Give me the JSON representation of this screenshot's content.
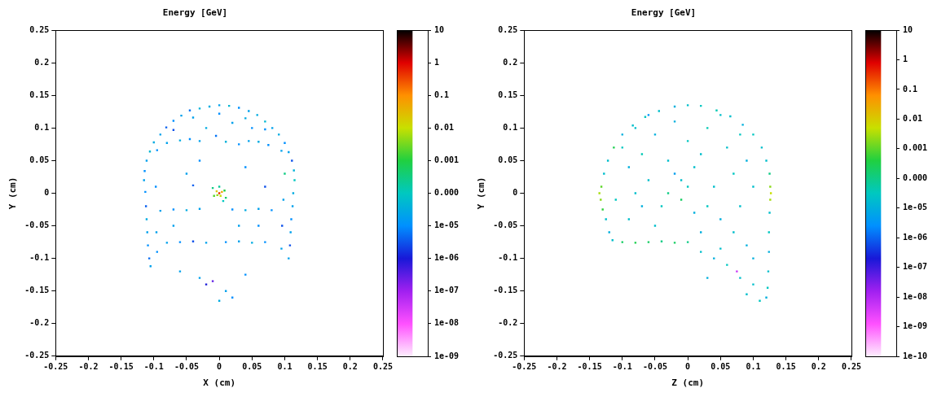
{
  "chart_data": [
    {
      "type": "scatter",
      "title": "Energy [GeV]",
      "x_label": "X (cm)",
      "y_label": "Y (cm)",
      "xlim": [
        -0.25,
        0.25
      ],
      "ylim": [
        -0.25,
        0.25
      ],
      "xticks": [
        -0.25,
        -0.2,
        -0.15,
        -0.1,
        -0.05,
        0,
        0.05,
        0.1,
        0.15,
        0.2,
        0.25
      ],
      "yticks": [
        -0.25,
        -0.2,
        -0.15,
        -0.1,
        -0.05,
        0,
        0.05,
        0.1,
        0.15,
        0.2,
        0.25
      ],
      "grid": false,
      "marker": "square",
      "points": [
        [
          0,
          0.135,
          2e-05
        ],
        [
          0.015,
          0.134,
          5e-05
        ],
        [
          -0.015,
          0.133,
          3e-05
        ],
        [
          0.03,
          0.131,
          1e-05
        ],
        [
          -0.03,
          0.13,
          4e-05
        ],
        [
          0.045,
          0.126,
          2e-05
        ],
        [
          -0.045,
          0.127,
          6e-06
        ],
        [
          0.058,
          0.12,
          3e-05
        ],
        [
          -0.058,
          0.119,
          2e-05
        ],
        [
          0.07,
          0.11,
          5e-05
        ],
        [
          -0.07,
          0.111,
          1e-05
        ],
        [
          0.081,
          0.1,
          2e-05
        ],
        [
          -0.081,
          0.101,
          4e-06
        ],
        [
          0.091,
          0.09,
          3e-05
        ],
        [
          -0.09,
          0.09,
          2e-05
        ],
        [
          0.1,
          0.077,
          1e-05
        ],
        [
          -0.1,
          0.078,
          3e-05
        ],
        [
          0.106,
          0.063,
          2e-05
        ],
        [
          -0.106,
          0.064,
          5e-05
        ],
        [
          0.111,
          0.05,
          3e-06
        ],
        [
          -0.111,
          0.05,
          2e-05
        ],
        [
          0.114,
          0.035,
          4e-05
        ],
        [
          -0.114,
          0.034,
          1e-05
        ],
        [
          0,
          0.122,
          1e-05
        ],
        [
          0.04,
          0.115,
          3e-05
        ],
        [
          -0.04,
          0.116,
          2e-05
        ],
        [
          0.07,
          0.098,
          1e-05
        ],
        [
          -0.07,
          0.097,
          3e-06
        ],
        [
          0.095,
          0.065,
          2e-05
        ],
        [
          -0.095,
          0.066,
          1e-05
        ],
        [
          0.115,
          0.02,
          0.0001
        ],
        [
          -0.115,
          0.02,
          2e-05
        ],
        [
          0.113,
          0,
          3e-05
        ],
        [
          -0.113,
          0.002,
          1e-05
        ],
        [
          0.112,
          -0.02,
          2e-05
        ],
        [
          -0.112,
          -0.02,
          4e-06
        ],
        [
          0.11,
          -0.04,
          1e-05
        ],
        [
          -0.111,
          -0.04,
          3e-05
        ],
        [
          0.109,
          -0.06,
          2e-05
        ],
        [
          -0.11,
          -0.06,
          2e-05
        ],
        [
          0.108,
          -0.08,
          3e-06
        ],
        [
          -0.109,
          -0.08,
          1e-05
        ],
        [
          0.106,
          -0.1,
          2e-05
        ],
        [
          -0.107,
          -0.1,
          5e-06
        ],
        [
          -0.105,
          -0.112,
          2e-05
        ],
        [
          0.1,
          0.03,
          0.0003
        ],
        [
          0.098,
          -0.01,
          2e-05
        ],
        [
          -0.097,
          0.01,
          1e-05
        ],
        [
          0.096,
          -0.05,
          3e-06
        ],
        [
          -0.096,
          -0.06,
          2e-05
        ],
        [
          -0.095,
          -0.09,
          1e-05
        ],
        [
          0.095,
          -0.085,
          2e-05
        ],
        [
          -0.08,
          0.077,
          2e-05
        ],
        [
          -0.06,
          0.081,
          3e-05
        ],
        [
          -0.045,
          0.083,
          1e-05
        ],
        [
          -0.03,
          0.08,
          2e-05
        ],
        [
          0.01,
          0.079,
          4e-05
        ],
        [
          0.03,
          0.075,
          1e-05
        ],
        [
          0.045,
          0.08,
          2e-05
        ],
        [
          0.06,
          0.079,
          3e-05
        ],
        [
          0.075,
          0.074,
          1e-05
        ],
        [
          -0.005,
          0.088,
          6e-06
        ],
        [
          -0.09,
          -0.027,
          2e-05
        ],
        [
          -0.07,
          -0.025,
          1e-05
        ],
        [
          -0.05,
          -0.026,
          3e-05
        ],
        [
          -0.03,
          -0.024,
          2e-05
        ],
        [
          0.02,
          -0.025,
          1e-05
        ],
        [
          0.04,
          -0.026,
          3e-05
        ],
        [
          0.06,
          -0.024,
          2e-05
        ],
        [
          0.08,
          -0.026,
          1e-05
        ],
        [
          -0.08,
          -0.076,
          2e-05
        ],
        [
          -0.06,
          -0.075,
          1e-05
        ],
        [
          -0.04,
          -0.074,
          3e-06
        ],
        [
          -0.02,
          -0.076,
          2e-05
        ],
        [
          0.01,
          -0.075,
          1e-05
        ],
        [
          0.03,
          -0.074,
          2e-05
        ],
        [
          0.05,
          -0.076,
          3e-05
        ],
        [
          0.07,
          -0.075,
          1e-05
        ],
        [
          0.006,
          -0.012,
          0.0001
        ],
        [
          0,
          0.01,
          0.0002
        ],
        [
          -0.01,
          0.008,
          0.0003
        ],
        [
          0.01,
          -0.007,
          0.0005
        ],
        [
          -0.008,
          -0.004,
          0.002
        ],
        [
          0.008,
          0.004,
          0.001
        ],
        [
          -0.003,
          -0.003,
          0.005
        ],
        [
          0.002,
          -0.004,
          0.01
        ],
        [
          -0.004,
          0.003,
          0.02
        ],
        [
          0.004,
          0.002,
          0.05
        ],
        [
          0,
          0,
          0.5
        ],
        [
          -0.05,
          0.03,
          2e-05
        ],
        [
          0.04,
          0.04,
          1e-05
        ],
        [
          0.07,
          0.01,
          3e-06
        ],
        [
          -0.07,
          -0.05,
          2e-05
        ],
        [
          0.06,
          -0.05,
          1e-05
        ],
        [
          0.02,
          0.108,
          2e-05
        ],
        [
          -0.02,
          0.1,
          3e-05
        ],
        [
          0.05,
          0.1,
          1e-05
        ],
        [
          -0.03,
          0.05,
          1e-05
        ],
        [
          0.03,
          -0.05,
          2e-05
        ],
        [
          -0.04,
          0.012,
          4e-06
        ],
        [
          -0.03,
          -0.13,
          2e-05
        ],
        [
          -0.02,
          -0.14,
          1e-06
        ],
        [
          0.01,
          -0.15,
          2e-05
        ],
        [
          0,
          -0.165,
          3e-05
        ],
        [
          0.04,
          -0.125,
          1e-05
        ],
        [
          -0.06,
          -0.12,
          2e-05
        ],
        [
          0.02,
          -0.16,
          1e-05
        ],
        [
          -0.01,
          -0.135,
          3e-07
        ]
      ],
      "colorbar": {
        "log": true,
        "range": [
          1e-09,
          10
        ],
        "ticks": [
          10,
          1,
          0.1,
          0.01,
          0.001,
          {
            "value": 0.0001,
            "label": "0.000"
          },
          {
            "value": 1e-05,
            "label": "1e-05"
          },
          {
            "value": 1e-06,
            "label": "1e-06"
          },
          {
            "value": 1e-07,
            "label": "1e-07"
          },
          {
            "value": 1e-08,
            "label": "1e-08"
          },
          {
            "value": 1e-09,
            "label": "1e-09"
          }
        ]
      }
    },
    {
      "type": "scatter",
      "title": "Energy [GeV]",
      "x_label": "Z (cm)",
      "y_label": "Y (cm)",
      "xlim": [
        -0.25,
        0.25
      ],
      "ylim": [
        -0.25,
        0.25
      ],
      "xticks": [
        -0.25,
        -0.2,
        -0.15,
        -0.1,
        -0.05,
        0,
        0.05,
        0.1,
        0.15,
        0.2,
        0.25
      ],
      "yticks": [
        -0.25,
        -0.2,
        -0.15,
        -0.1,
        -0.05,
        0,
        0.05,
        0.1,
        0.15,
        0.2,
        0.25
      ],
      "grid": false,
      "marker": "square",
      "points": [
        [
          0,
          0.135,
          2e-05
        ],
        [
          0.02,
          0.134,
          3e-05
        ],
        [
          -0.02,
          0.133,
          1e-05
        ],
        [
          0.044,
          0.127,
          4e-05
        ],
        [
          -0.044,
          0.126,
          2e-05
        ],
        [
          0.065,
          0.118,
          2e-05
        ],
        [
          -0.065,
          0.117,
          3e-05
        ],
        [
          0.084,
          0.105,
          1e-05
        ],
        [
          -0.084,
          0.104,
          2e-05
        ],
        [
          0.1,
          0.09,
          3e-05
        ],
        [
          -0.1,
          0.09,
          1e-05
        ],
        [
          0.113,
          0.07,
          2e-05
        ],
        [
          -0.113,
          0.07,
          0.0003
        ],
        [
          0.12,
          0.05,
          2e-05
        ],
        [
          -0.122,
          0.05,
          2e-05
        ],
        [
          0.125,
          0.03,
          0.0001
        ],
        [
          0.126,
          0.01,
          0.002
        ],
        [
          0.127,
          0,
          0.005
        ],
        [
          0.126,
          -0.01,
          0.003
        ],
        [
          0.125,
          -0.03,
          2e-05
        ],
        [
          0.124,
          -0.06,
          3e-05
        ],
        [
          0.124,
          -0.09,
          1e-05
        ],
        [
          0.123,
          -0.12,
          2e-05
        ],
        [
          0.122,
          -0.145,
          3e-05
        ],
        [
          0.12,
          -0.16,
          1e-05
        ],
        [
          -0.128,
          0.03,
          2e-05
        ],
        [
          -0.132,
          0.01,
          0.001
        ],
        [
          -0.135,
          0,
          0.003
        ],
        [
          -0.133,
          -0.01,
          0.002
        ],
        [
          -0.13,
          -0.025,
          0.0005
        ],
        [
          -0.125,
          -0.04,
          2e-05
        ],
        [
          -0.12,
          -0.06,
          1e-05
        ],
        [
          -0.115,
          -0.072,
          2e-05
        ],
        [
          -0.1,
          -0.075,
          0.0002
        ],
        [
          -0.08,
          -0.076,
          0.0003
        ],
        [
          -0.06,
          -0.075,
          0.0002
        ],
        [
          -0.04,
          -0.074,
          0.0001
        ],
        [
          -0.02,
          -0.076,
          0.0002
        ],
        [
          0,
          -0.075,
          0.0001
        ],
        [
          -0.1,
          0.07,
          3e-05
        ],
        [
          -0.09,
          0.04,
          1e-05
        ],
        [
          -0.08,
          0.1,
          2e-05
        ],
        [
          -0.07,
          0.06,
          4e-05
        ],
        [
          -0.06,
          0.02,
          2e-05
        ],
        [
          -0.05,
          0.09,
          1e-05
        ],
        [
          -0.04,
          -0.02,
          3e-05
        ],
        [
          -0.03,
          0.05,
          2e-05
        ],
        [
          -0.02,
          0.11,
          1e-05
        ],
        [
          -0.01,
          0.02,
          2e-05
        ],
        [
          0,
          0.08,
          3e-05
        ],
        [
          0.01,
          -0.03,
          1e-05
        ],
        [
          0.02,
          0.06,
          2e-05
        ],
        [
          0.03,
          0.1,
          4e-05
        ],
        [
          0.04,
          0.01,
          2e-05
        ],
        [
          0.05,
          -0.04,
          1e-05
        ],
        [
          0.06,
          0.07,
          2e-05
        ],
        [
          0.07,
          0.03,
          3e-05
        ],
        [
          0.08,
          -0.02,
          2e-05
        ],
        [
          0.09,
          0.05,
          1e-05
        ],
        [
          0.1,
          0.01,
          2e-05
        ],
        [
          -0.11,
          -0.01,
          3e-05
        ],
        [
          -0.09,
          -0.04,
          2e-05
        ],
        [
          -0.07,
          -0.02,
          1e-05
        ],
        [
          -0.05,
          -0.05,
          2e-05
        ],
        [
          -0.03,
          0,
          0.0001
        ],
        [
          -0.01,
          -0.01,
          0.0002
        ],
        [
          0,
          0.01,
          3e-05
        ],
        [
          0.01,
          0.04,
          2e-05
        ],
        [
          0.02,
          -0.06,
          1e-05
        ],
        [
          -0.02,
          0.03,
          5e-06
        ],
        [
          0.05,
          0.12,
          2e-05
        ],
        [
          -0.06,
          0.12,
          3e-06
        ],
        [
          0.07,
          -0.06,
          2e-05
        ],
        [
          0.09,
          -0.08,
          1e-05
        ],
        [
          0.08,
          0.09,
          3e-05
        ],
        [
          -0.08,
          0,
          2e-05
        ],
        [
          0.03,
          -0.02,
          3e-05
        ],
        [
          0.02,
          -0.09,
          2e-05
        ],
        [
          0.04,
          -0.1,
          1e-05
        ],
        [
          0.06,
          -0.11,
          3e-05
        ],
        [
          0.075,
          -0.12,
          5e-09
        ],
        [
          0.08,
          -0.13,
          2e-05
        ],
        [
          0.1,
          -0.1,
          1e-05
        ],
        [
          0.1,
          -0.14,
          2e-05
        ],
        [
          0.11,
          -0.165,
          3e-05
        ],
        [
          0.03,
          -0.13,
          1e-05
        ],
        [
          0.09,
          -0.155,
          2e-05
        ],
        [
          0.05,
          -0.085,
          2e-05
        ]
      ],
      "colorbar": {
        "log": true,
        "range": [
          1e-10,
          10
        ],
        "ticks": [
          10,
          1,
          0.1,
          0.01,
          0.001,
          0.0001,
          {
            "value": 1e-05,
            "label": "1e-05"
          },
          {
            "value": 1e-06,
            "label": "1e-06"
          },
          {
            "value": 1e-07,
            "label": "1e-07"
          },
          {
            "value": 1e-08,
            "label": "1e-08"
          },
          {
            "value": 1e-09,
            "label": "1e-09"
          },
          {
            "value": 1e-10,
            "label": "1e-10"
          }
        ]
      }
    }
  ]
}
